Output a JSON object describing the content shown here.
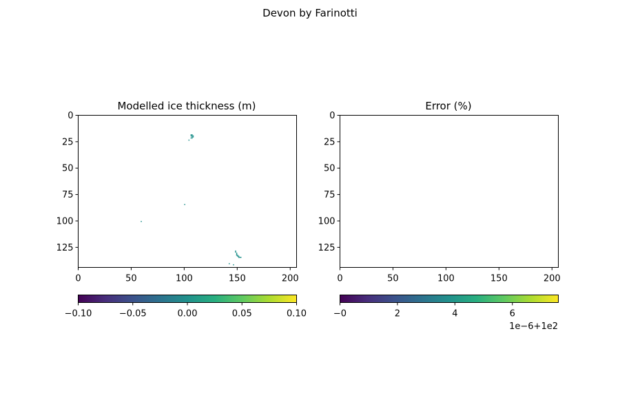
{
  "suptitle": "Devon by Farinotti",
  "chart_data": [
    {
      "type": "heatmap",
      "title": "Modelled ice thickness (m)",
      "xlim": [
        0,
        206
      ],
      "ylim": [
        144,
        0
      ],
      "x_ticks": [
        "0",
        "50",
        "100",
        "150",
        "200"
      ],
      "y_ticks": [
        "0",
        "25",
        "50",
        "75",
        "100",
        "125"
      ],
      "colormap": "viridis",
      "colorbar": {
        "range": [
          -0.1,
          0.1
        ],
        "tick_values": [
          -0.1,
          -0.05,
          0,
          0.05,
          0.1
        ],
        "tick_labels": [
          "−0.10",
          "−0.05",
          "0.00",
          "0.05",
          "0.10"
        ],
        "offset_text": ""
      },
      "cells": [
        {
          "x": 106,
          "y": 18,
          "value": 0.0
        },
        {
          "x": 107,
          "y": 18,
          "value": 0.0
        },
        {
          "x": 106,
          "y": 19,
          "value": 0.0
        },
        {
          "x": 107,
          "y": 19,
          "value": 0.0
        },
        {
          "x": 108,
          "y": 19,
          "value": 0.0
        },
        {
          "x": 107,
          "y": 20,
          "value": 0.0
        },
        {
          "x": 108,
          "y": 20,
          "value": 0.0
        },
        {
          "x": 106,
          "y": 21,
          "value": 0.0
        },
        {
          "x": 107,
          "y": 21,
          "value": 0.0
        },
        {
          "x": 104,
          "y": 23,
          "value": 0.0
        },
        {
          "x": 100,
          "y": 84,
          "value": 0.0
        },
        {
          "x": 59,
          "y": 100,
          "value": 0.0
        },
        {
          "x": 148,
          "y": 128,
          "value": 0.0
        },
        {
          "x": 148,
          "y": 129,
          "value": 0.0
        },
        {
          "x": 149,
          "y": 130,
          "value": 0.0
        },
        {
          "x": 149,
          "y": 131,
          "value": 0.0
        },
        {
          "x": 149,
          "y": 132,
          "value": 0.0
        },
        {
          "x": 150,
          "y": 132,
          "value": 0.0
        },
        {
          "x": 150,
          "y": 133,
          "value": 0.0
        },
        {
          "x": 151,
          "y": 133,
          "value": 0.0
        },
        {
          "x": 151,
          "y": 134,
          "value": 0.0
        },
        {
          "x": 152,
          "y": 134,
          "value": 0.0
        },
        {
          "x": 153,
          "y": 134,
          "value": 0.0
        },
        {
          "x": 142,
          "y": 140,
          "value": 0.0
        },
        {
          "x": 146,
          "y": 141,
          "value": 0.0
        }
      ]
    },
    {
      "type": "heatmap",
      "title": "Error (%)",
      "xlim": [
        0,
        206
      ],
      "ylim": [
        144,
        0
      ],
      "x_ticks": [
        "0",
        "50",
        "100",
        "150",
        "200"
      ],
      "y_ticks": [
        "0",
        "25",
        "50",
        "75",
        "100",
        "125"
      ],
      "colormap": "viridis",
      "colorbar": {
        "range": [
          -2e-07,
          7.6
        ],
        "tick_values": [
          0,
          2,
          4,
          6
        ],
        "tick_labels": [
          "−0",
          "2",
          "4",
          "6"
        ],
        "offset_text": "1e−6+1e2"
      },
      "cells": []
    }
  ]
}
